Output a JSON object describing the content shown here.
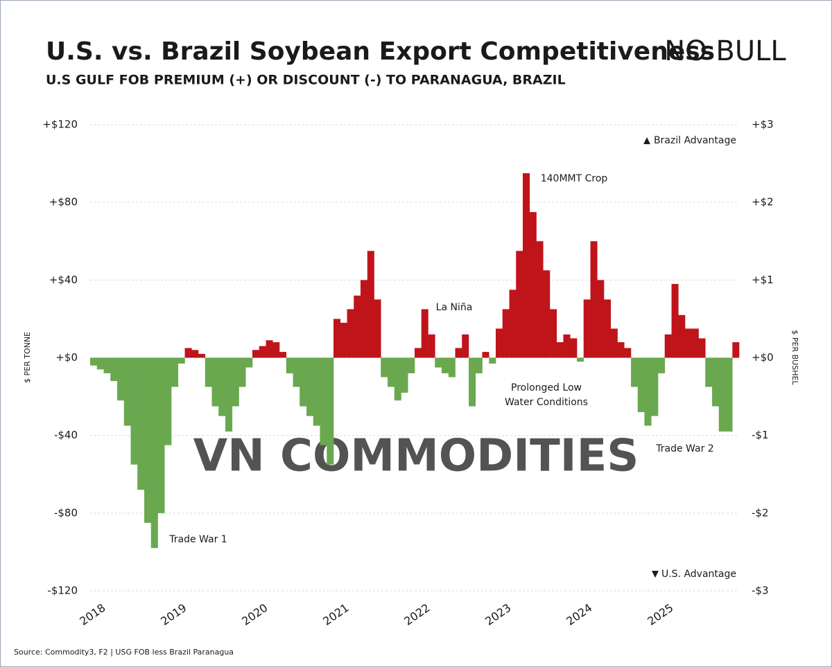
{
  "chart_data": {
    "type": "bar",
    "title": "U.S. vs. Brazil Soybean Export Competitiveness",
    "subtitle": "U.S GULF FOB PREMIUM (+) OR DISCOUNT (-) TO PARANAGUA, BRAZIL",
    "logo": "NO BULL",
    "watermark": "VN COMMODITIES",
    "source": "Source: Commodity3, F2 | USG FOB less Brazil Paranagua",
    "ylabel": "$ PER TONNE",
    "y2label": "$ PER BUSHEL",
    "legend": [
      {
        "label": "Brazil Advantage",
        "color": "#c0141b"
      },
      {
        "label": "U.S. Advantage",
        "color": "#6aa84f"
      }
    ],
    "annotations": [
      "140MMT Crop",
      "La Niña",
      "Prolonged Low",
      "Water Conditions",
      "Trade War 1",
      "Trade War 2"
    ],
    "grid": true,
    "xlim": [
      2018,
      2026
    ],
    "xticks": [
      2018,
      2019,
      2020,
      2021,
      2022,
      2023,
      2024,
      2025
    ],
    "ylim": [
      -120,
      120
    ],
    "yticks": [
      {
        "value": 120,
        "label": "+$120"
      },
      {
        "value": 80,
        "label": "+$80"
      },
      {
        "value": 40,
        "label": "+$40"
      },
      {
        "value": 0,
        "label": "+$0"
      },
      {
        "value": -40,
        "label": "-$40"
      },
      {
        "value": -80,
        "label": "-$80"
      },
      {
        "value": -120,
        "label": "-$120"
      }
    ],
    "y2lim": [
      -3,
      3
    ],
    "y2ticks": [
      {
        "value": 3,
        "label": "+$3"
      },
      {
        "value": 2,
        "label": "+$2"
      },
      {
        "value": 1,
        "label": "+$1"
      },
      {
        "value": 0,
        "label": "+$0"
      },
      {
        "value": -1,
        "label": "-$1"
      },
      {
        "value": -2,
        "label": "-$2"
      },
      {
        "value": -3,
        "label": "-$3"
      }
    ],
    "x": [
      2018,
      2018.083,
      2018.167,
      2018.25,
      2018.333,
      2018.417,
      2018.5,
      2018.583,
      2018.667,
      2018.75,
      2018.833,
      2018.917,
      2019,
      2019.083,
      2019.167,
      2019.25,
      2019.333,
      2019.417,
      2019.5,
      2019.583,
      2019.667,
      2019.75,
      2019.833,
      2019.917,
      2020,
      2020.083,
      2020.167,
      2020.25,
      2020.333,
      2020.417,
      2020.5,
      2020.583,
      2020.667,
      2020.75,
      2020.833,
      2020.917,
      2021,
      2021.083,
      2021.167,
      2021.25,
      2021.333,
      2021.417,
      2021.5,
      2021.583,
      2021.667,
      2021.75,
      2021.833,
      2021.917,
      2022,
      2022.083,
      2022.167,
      2022.25,
      2022.333,
      2022.417,
      2022.5,
      2022.583,
      2022.667,
      2022.75,
      2022.833,
      2022.917,
      2023,
      2023.083,
      2023.167,
      2023.25,
      2023.333,
      2023.417,
      2023.5,
      2023.583,
      2023.667,
      2023.75,
      2023.833,
      2023.917,
      2024,
      2024.083,
      2024.167,
      2024.25,
      2024.333,
      2024.417,
      2024.5,
      2024.583,
      2024.667,
      2024.75,
      2024.833,
      2024.917,
      2025,
      2025.083,
      2025.167,
      2025.25,
      2025.333,
      2025.417,
      2025.5,
      2025.583,
      2025.667,
      2025.75,
      2025.833,
      2025.917
    ],
    "values": [
      -4,
      -6,
      -8,
      -12,
      -22,
      -35,
      -55,
      -68,
      -85,
      -98,
      -80,
      -45,
      -15,
      -3,
      5,
      4,
      2,
      -15,
      -25,
      -30,
      -38,
      -25,
      -15,
      -5,
      4,
      6,
      9,
      8,
      3,
      -8,
      -15,
      -25,
      -30,
      -35,
      -45,
      -55,
      20,
      18,
      25,
      32,
      40,
      55,
      30,
      -10,
      -15,
      -22,
      -18,
      -8,
      5,
      25,
      12,
      -5,
      -8,
      -10,
      5,
      12,
      -25,
      -8,
      3,
      -3,
      15,
      25,
      35,
      55,
      95,
      75,
      60,
      45,
      25,
      8,
      12,
      10,
      -2,
      30,
      60,
      40,
      30,
      15,
      8,
      5,
      -15,
      -28,
      -35,
      -30,
      -8,
      12,
      38,
      22,
      15,
      15,
      10,
      -15,
      -25,
      -38,
      -38,
      8
    ]
  }
}
